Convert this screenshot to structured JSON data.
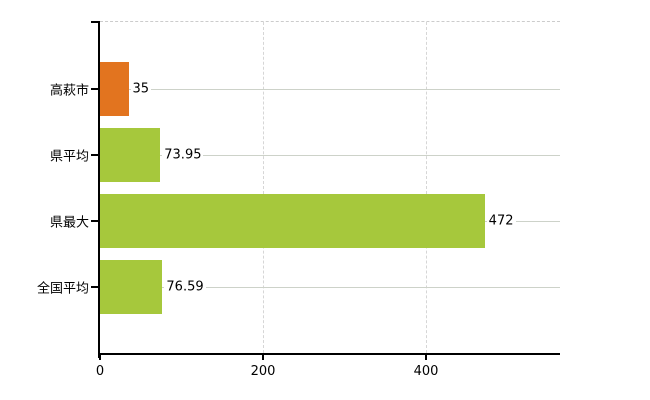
{
  "chart_data": {
    "type": "bar",
    "orientation": "horizontal",
    "title": "",
    "xlabel": "",
    "ylabel": "",
    "categories": [
      "高萩市",
      "県平均",
      "県最大",
      "全国平均"
    ],
    "values": [
      35,
      73.95,
      472,
      76.59
    ],
    "value_labels": [
      "35",
      "73.95",
      "472",
      "76.59"
    ],
    "bar_colors": [
      "#e2741f",
      "#a6c83c",
      "#a6c83c",
      "#a6c83c"
    ],
    "x_ticks": [
      0,
      200,
      400
    ],
    "x_tick_labels": [
      "0",
      "200",
      "400"
    ],
    "xlim": [
      0,
      564
    ],
    "grid": true,
    "legend": false,
    "legend_position": "none"
  },
  "colors": {
    "background": "#ffffff",
    "axis": "#000000",
    "text": "#000000",
    "hgrid": "#cdd2c9",
    "vgrid": "#d6d6d6",
    "top-border": "#cccccc",
    "bar-orange": "#e2741f",
    "bar-green": "#a6c83c"
  }
}
